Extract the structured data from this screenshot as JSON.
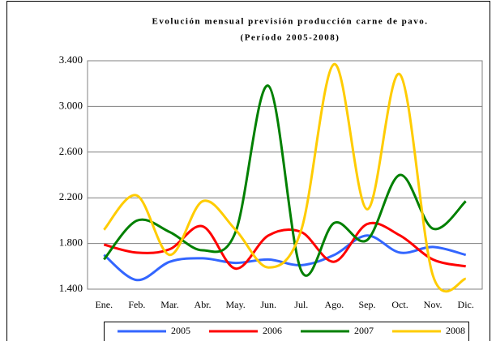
{
  "chart_data": {
    "type": "line",
    "title": "Evolución mensual previsión producción carne de pavo.",
    "subtitle": "(Período 2005-2008)",
    "categories": [
      "Ene.",
      "Feb.",
      "Mar.",
      "Abr.",
      "May.",
      "Jun.",
      "Jul.",
      "Ago.",
      "Sep.",
      "Oct.",
      "Nov.",
      "Dic."
    ],
    "series": [
      {
        "name": "2005",
        "color": "#3366ff",
        "values": [
          1700,
          1480,
          1640,
          1670,
          1630,
          1660,
          1610,
          1700,
          1870,
          1720,
          1770,
          1700
        ]
      },
      {
        "name": "2006",
        "color": "#ff0000",
        "values": [
          1790,
          1720,
          1750,
          1950,
          1580,
          1870,
          1900,
          1640,
          1970,
          1870,
          1660,
          1600
        ]
      },
      {
        "name": "2007",
        "color": "#008000",
        "values": [
          1660,
          2000,
          1900,
          1740,
          1900,
          3180,
          1560,
          1980,
          1830,
          2400,
          1930,
          2170
        ]
      },
      {
        "name": "2008",
        "color": "#ffcc00",
        "values": [
          1920,
          2220,
          1700,
          2170,
          1920,
          1590,
          1920,
          3370,
          2100,
          3280,
          1520,
          1490
        ]
      }
    ],
    "ylim": [
      1400,
      3400
    ],
    "yticks": [
      {
        "value": 1400,
        "label": "1.400"
      },
      {
        "value": 1800,
        "label": "1.800"
      },
      {
        "value": 2200,
        "label": "2.200"
      },
      {
        "value": 2600,
        "label": "2.600"
      },
      {
        "value": 3000,
        "label": "3.000"
      },
      {
        "value": 3400,
        "label": "3.400"
      }
    ],
    "grid": true
  }
}
